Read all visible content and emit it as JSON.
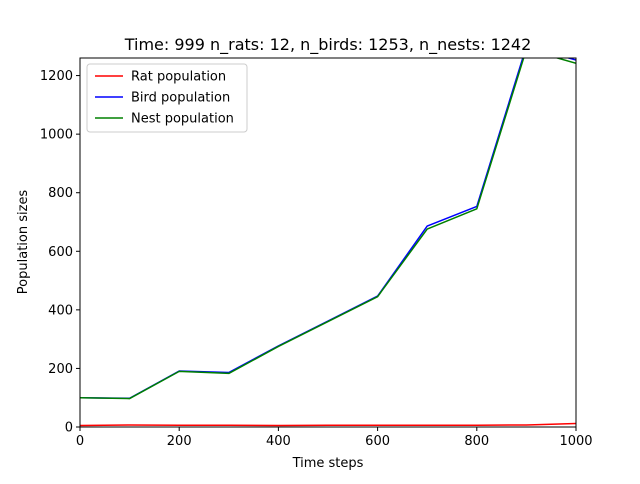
{
  "chart_data": {
    "type": "line",
    "title": "Time: 999 n_rats: 12, n_birds: 1253, n_nests: 1242",
    "xlabel": "Time steps",
    "ylabel": "Population sizes",
    "xlim": [
      0,
      1000
    ],
    "ylim": [
      0,
      1260
    ],
    "xticks": [
      0,
      200,
      400,
      600,
      800,
      1000
    ],
    "yticks": [
      0,
      200,
      400,
      600,
      800,
      1000,
      1200
    ],
    "grid": false,
    "legend_position": "top-left",
    "x": [
      0,
      100,
      200,
      300,
      400,
      500,
      600,
      700,
      800,
      900,
      1000
    ],
    "series": [
      {
        "name": "Rat population",
        "color": "#ff0000",
        "values": [
          5,
          7,
          6,
          6,
          5,
          6,
          6,
          6,
          6,
          7,
          12
        ]
      },
      {
        "name": "Bird population",
        "color": "#0000ff",
        "values": [
          100,
          98,
          191,
          186,
          277,
          362,
          447,
          686,
          753,
          1300,
          1253
        ]
      },
      {
        "name": "Nest population",
        "color": "#008000",
        "values": [
          100,
          97,
          190,
          183,
          275,
          360,
          445,
          676,
          745,
          1290,
          1242
        ]
      }
    ]
  }
}
